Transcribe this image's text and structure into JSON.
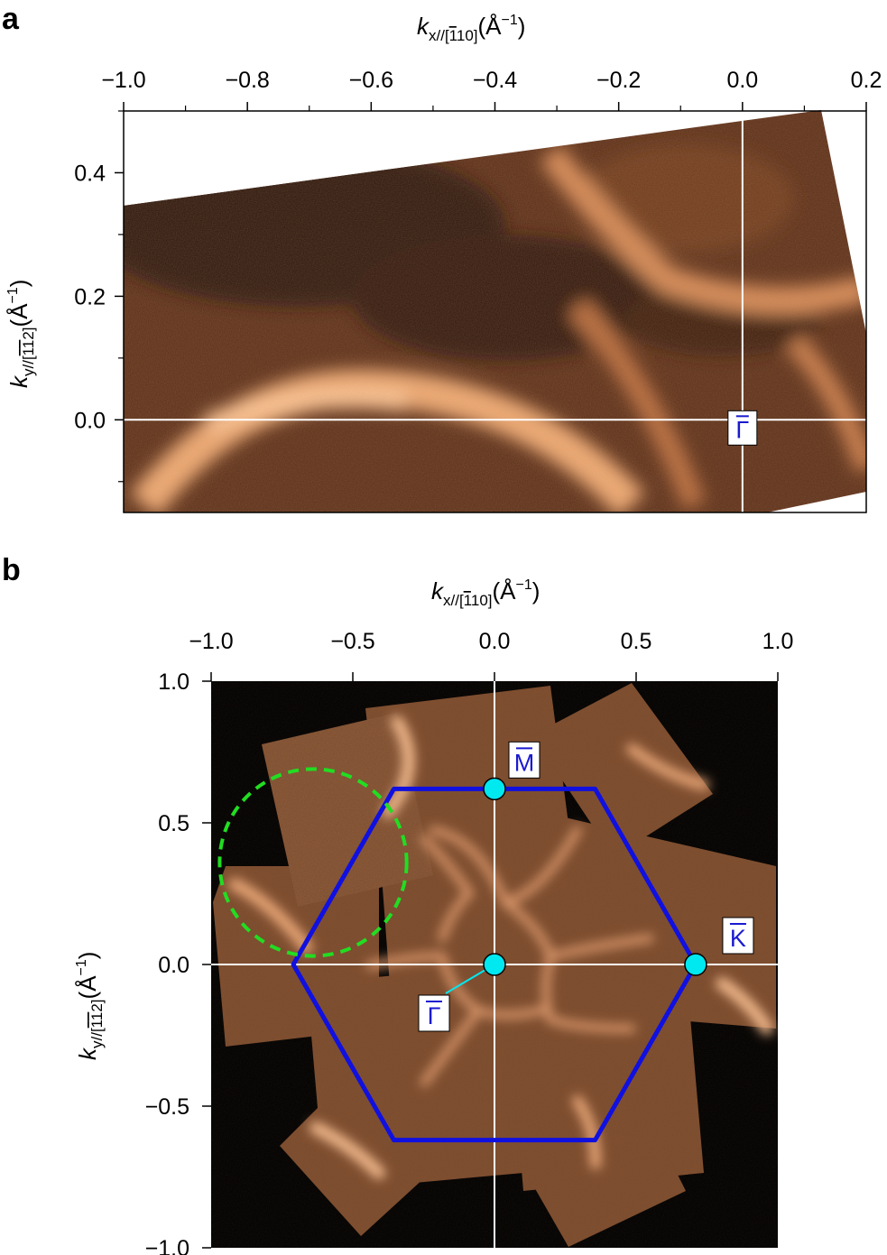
{
  "panels": [
    {
      "panel_label": "a",
      "xlabel": {
        "k": "k",
        "sub": "x//[",
        "sub_bar": "1",
        "sub_rest": "10]",
        "unit": "(Å",
        "exp": "−1",
        "close": ")"
      },
      "ylabel": {
        "k": "k",
        "sub": "y//[",
        "sub_bar": "1",
        "sub_bar2": "1",
        "sub_rest": "2]",
        "unit": "(Å",
        "exp": "−1",
        "close": ")"
      },
      "xticks": [
        "−1.0",
        "−0.8",
        "−0.6",
        "−0.4",
        "−0.2",
        "0.0",
        "0.2"
      ],
      "yticks": [
        "0.4",
        "0.2",
        "0.0"
      ],
      "point_label": "Γ"
    },
    {
      "panel_label": "b",
      "xlabel": {
        "k": "k",
        "sub": "x//[",
        "sub_bar": "1",
        "sub_rest": "10]",
        "unit": "(Å",
        "exp": "−1",
        "close": ")"
      },
      "ylabel": {
        "k": "k",
        "sub": "y//[",
        "sub_bar": "1",
        "sub_bar2": "1",
        "sub_rest": "2]",
        "unit": "(Å",
        "exp": "−1",
        "close": ")"
      },
      "xticks": [
        "−1.0",
        "−0.5",
        "0.0",
        "0.5",
        "1.0"
      ],
      "yticks": [
        "1.0",
        "0.5",
        "0.0",
        "−0.5",
        "−1.0"
      ],
      "points": [
        {
          "label": "M",
          "x": 0.0,
          "y": 0.62
        },
        {
          "label": "K",
          "x": 0.71,
          "y": 0.0
        },
        {
          "label": "Γ",
          "x": 0.0,
          "y": 0.0
        }
      ]
    }
  ],
  "chart_data": [
    {
      "type": "heatmap",
      "title": "",
      "xlim": [
        -1.0,
        0.2
      ],
      "ylim": [
        -0.15,
        0.5
      ],
      "x_ticks": [
        -1.0,
        -0.8,
        -0.6,
        -0.4,
        -0.2,
        0.0,
        0.2
      ],
      "y_ticks": [
        0.4,
        0.2,
        0.0
      ],
      "reference_lines": {
        "x": 0.0,
        "y": 0.0
      },
      "colormap": [
        "#1e0e06",
        "#7a4424",
        "#e8a070",
        "#ffd9b8"
      ],
      "description_bands": "bright arc near ky≈0 around kx≈-0.7; bright arc near ky≈0.25 around kx≈-0.1"
    },
    {
      "type": "heatmap",
      "title": "",
      "xlim": [
        -1.0,
        1.0
      ],
      "ylim": [
        -1.0,
        1.0
      ],
      "x_ticks": [
        -1.0,
        -0.5,
        0.0,
        0.5,
        1.0
      ],
      "y_ticks": [
        1.0,
        0.5,
        0.0,
        -0.5,
        -1.0
      ],
      "reference_lines": {
        "x": 0.0,
        "y": 0.0
      },
      "brillouin_zone": {
        "shape": "hexagon",
        "color": "#1010e0",
        "vertices": [
          [
            0.71,
            0.0
          ],
          [
            0.355,
            0.62
          ],
          [
            -0.355,
            0.62
          ],
          [
            -0.71,
            0.0
          ],
          [
            -0.355,
            -0.62
          ],
          [
            0.355,
            -0.62
          ]
        ]
      },
      "dashed_circle": {
        "cx": -0.64,
        "cy": 0.36,
        "r": 0.33,
        "color": "#22dd22"
      },
      "high_symmetry_points": [
        {
          "label": "M",
          "x": 0.0,
          "y": 0.62
        },
        {
          "label": "K",
          "x": 0.71,
          "y": 0.0
        },
        {
          "label": "Γ",
          "x": 0.0,
          "y": 0.0
        }
      ],
      "point_color": "#00e8f0"
    }
  ]
}
